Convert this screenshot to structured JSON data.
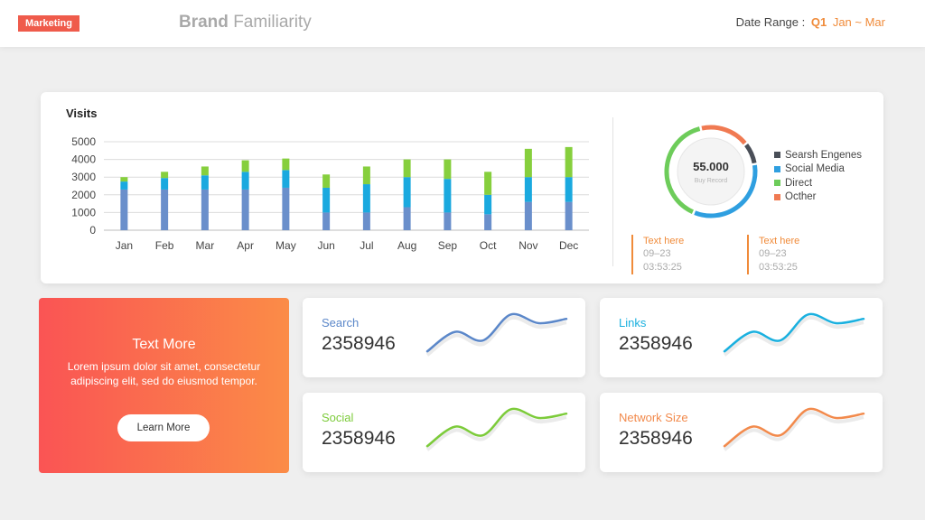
{
  "header": {
    "badge": "Marketing",
    "title_bold": "Brand",
    "title_light": "Familiarity",
    "date_label": "Date Range :",
    "quarter": "Q1",
    "months": "Jan ~ Mar"
  },
  "colors": {
    "accent_orange": "#f08b3a",
    "badge_red": "#ef5b4b",
    "series_base": "#6a8fcb",
    "series_mid": "#1aa9df",
    "series_top": "#86cf3d"
  },
  "chart_data": {
    "type": "bar",
    "title": "Visits",
    "stacked": true,
    "categories": [
      "Jan",
      "Feb",
      "Mar",
      "Apr",
      "May",
      "Jun",
      "Jul",
      "Aug",
      "Sep",
      "Oct",
      "Nov",
      "Dec"
    ],
    "series": [
      {
        "values": [
          2300,
          2300,
          2300,
          2300,
          2400,
          1000,
          1000,
          1300,
          1000,
          900,
          1600,
          1600
        ]
      },
      {
        "values": [
          450,
          650,
          800,
          1000,
          1000,
          1400,
          1600,
          1700,
          1900,
          1100,
          1400,
          1400
        ]
      },
      {
        "values": [
          250,
          350,
          500,
          650,
          650,
          750,
          1000,
          1000,
          1100,
          1300,
          1600,
          1700
        ]
      }
    ],
    "yticks": [
      "0",
      "1000",
      "2000",
      "3000",
      "4000",
      "5000"
    ],
    "ylim": [
      0,
      5000
    ],
    "grid": true
  },
  "donut": {
    "value": "55.000",
    "sub": "Buy Record",
    "segments": [
      {
        "label": "Searsh Engenes",
        "value": 8,
        "color": "#4a4f58"
      },
      {
        "label": "Social Media",
        "value": 34,
        "color": "#2f9fe0"
      },
      {
        "label": "Direct",
        "value": 40,
        "color": "#6dcc5a"
      },
      {
        "label": "Octher",
        "value": 18,
        "color": "#f07a52"
      }
    ]
  },
  "notes": [
    {
      "title": "Text here",
      "date": "09–23",
      "time": "03:53:25"
    },
    {
      "title": "Text here",
      "date": "09–23",
      "time": "03:53:25"
    }
  ],
  "promo": {
    "title": "Text More",
    "text": "Lorem ipsum dolor sit amet, consectetur adipiscing elit, sed do eiusmod tempor.",
    "button": "Learn More"
  },
  "stats": [
    {
      "label": "Search",
      "value": "2358946",
      "color": "#5b87c9",
      "trend": [
        0.1,
        0.55,
        0.35,
        0.95,
        0.75,
        0.85
      ]
    },
    {
      "label": "Links",
      "value": "2358946",
      "color": "#1ab0df",
      "trend": [
        0.1,
        0.55,
        0.35,
        0.95,
        0.75,
        0.85
      ]
    },
    {
      "label": "Social",
      "value": "2358946",
      "color": "#7ccb3a",
      "trend": [
        0.1,
        0.55,
        0.35,
        0.95,
        0.75,
        0.85
      ]
    },
    {
      "label": "Network Size",
      "value": "2358946",
      "color": "#f28a4c",
      "trend": [
        0.1,
        0.55,
        0.35,
        0.95,
        0.75,
        0.85
      ]
    }
  ]
}
